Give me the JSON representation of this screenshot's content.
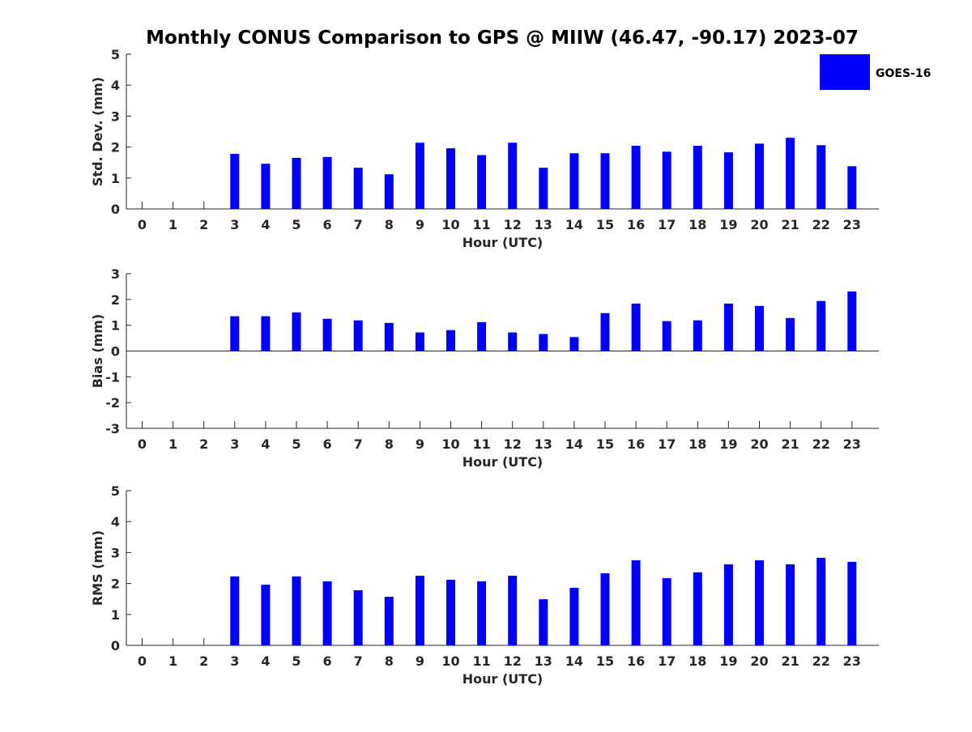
{
  "title": "Monthly CONUS Comparison to GPS @ MIIW (46.47, -90.17) 2023-07",
  "colors": {
    "bar": "#0000ff",
    "axis": "#262626",
    "background": "#ffffff"
  },
  "legend": {
    "label": "GOES-16",
    "placement": "top-right"
  },
  "chart_data": [
    {
      "type": "bar",
      "name": "std-dev",
      "ylabel": "Std. Dev. (mm)",
      "xlabel": "Hour (UTC)",
      "ylim": [
        0,
        5
      ],
      "yticks": [
        0,
        1,
        2,
        3,
        4,
        5
      ],
      "categories": [
        "0",
        "1",
        "2",
        "3",
        "4",
        "5",
        "6",
        "7",
        "8",
        "9",
        "10",
        "11",
        "12",
        "13",
        "14",
        "15",
        "16",
        "17",
        "18",
        "19",
        "20",
        "21",
        "22",
        "23"
      ],
      "series": [
        {
          "name": "GOES-16",
          "values": [
            null,
            null,
            null,
            1.78,
            1.46,
            1.65,
            1.68,
            1.33,
            1.12,
            2.14,
            1.96,
            1.74,
            2.14,
            1.33,
            1.8,
            1.8,
            2.04,
            1.85,
            2.04,
            1.83,
            2.11,
            2.3,
            2.06,
            1.38
          ]
        }
      ]
    },
    {
      "type": "bar",
      "name": "bias",
      "ylabel": "Bias (mm)",
      "xlabel": "Hour (UTC)",
      "ylim": [
        -3,
        3
      ],
      "yticks": [
        -3,
        -2,
        -1,
        0,
        1,
        2,
        3
      ],
      "zero_line": true,
      "categories": [
        "0",
        "1",
        "2",
        "3",
        "4",
        "5",
        "6",
        "7",
        "8",
        "9",
        "10",
        "11",
        "12",
        "13",
        "14",
        "15",
        "16",
        "17",
        "18",
        "19",
        "20",
        "21",
        "22",
        "23"
      ],
      "series": [
        {
          "name": "GOES-16",
          "values": [
            null,
            null,
            null,
            1.35,
            1.35,
            1.5,
            1.25,
            1.19,
            1.09,
            0.72,
            0.81,
            1.12,
            0.72,
            0.66,
            0.54,
            1.47,
            1.84,
            1.16,
            1.19,
            1.84,
            1.75,
            1.28,
            1.94,
            2.31
          ]
        }
      ]
    },
    {
      "type": "bar",
      "name": "rms",
      "ylabel": "RMS (mm)",
      "xlabel": "Hour (UTC)",
      "ylim": [
        0,
        5
      ],
      "yticks": [
        0,
        1,
        2,
        3,
        4,
        5
      ],
      "categories": [
        "0",
        "1",
        "2",
        "3",
        "4",
        "5",
        "6",
        "7",
        "8",
        "9",
        "10",
        "11",
        "12",
        "13",
        "14",
        "15",
        "16",
        "17",
        "18",
        "19",
        "20",
        "21",
        "22",
        "23"
      ],
      "series": [
        {
          "name": "GOES-16",
          "values": [
            null,
            null,
            null,
            2.23,
            1.96,
            2.23,
            2.07,
            1.78,
            1.57,
            2.25,
            2.12,
            2.07,
            2.25,
            1.49,
            1.86,
            2.33,
            2.75,
            2.17,
            2.36,
            2.62,
            2.75,
            2.62,
            2.83,
            2.7
          ]
        }
      ]
    }
  ]
}
